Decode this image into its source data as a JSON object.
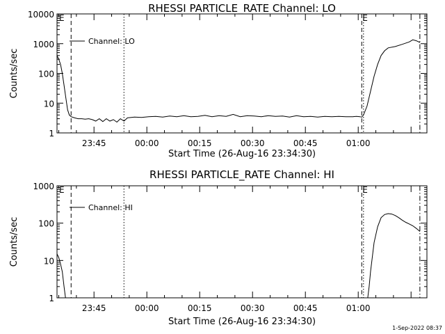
{
  "footer": {
    "timestamp": "1-Sep-2022 08:37"
  },
  "chart_data": [
    {
      "type": "line",
      "title": "RHESSI PARTICLE_RATE Channel: LO",
      "xlabel": "Start Time (26-Aug-16 23:34:30)",
      "ylabel": "Counts/sec",
      "yscale": "log",
      "ylim": [
        1,
        10000
      ],
      "ytick_labels": [
        "1",
        "10",
        "100",
        "1000",
        "10000"
      ],
      "xlim_minutes": [
        0,
        105
      ],
      "xtick_labels": [
        "23:45",
        "00:00",
        "00:15",
        "00:30",
        "00:45",
        "01:00"
      ],
      "legend": "Channel: LO",
      "marker_labels": [
        "E",
        "E"
      ],
      "vlines": [
        {
          "x": 4,
          "style": "dashed"
        },
        {
          "x": 19,
          "style": "dotted"
        },
        {
          "x": 86.5,
          "style": "dashed"
        },
        {
          "x": 87,
          "style": "dotted"
        },
        {
          "x": 103,
          "style": "dashdot"
        }
      ],
      "series": [
        {
          "x": [
            0,
            0.5,
            1,
            1.5,
            2,
            2.5,
            3,
            3.5,
            4,
            5,
            6,
            7,
            8,
            9,
            10,
            11,
            12,
            13,
            14,
            15,
            16,
            17,
            18,
            19,
            20,
            22,
            24,
            26,
            28,
            30,
            32,
            34,
            36,
            38,
            40,
            42,
            44,
            46,
            48,
            50,
            52,
            54,
            56,
            58,
            60,
            62,
            64,
            66,
            68,
            70,
            72,
            74,
            76,
            78,
            80,
            82,
            84,
            85,
            86,
            86.5,
            87,
            88,
            89,
            90,
            91,
            92,
            93,
            94,
            96,
            98,
            100,
            101,
            102,
            103
          ],
          "values": [
            400,
            300,
            200,
            100,
            40,
            15,
            6,
            4,
            3.5,
            3.2,
            3,
            3,
            2.9,
            3,
            2.8,
            2.5,
            3,
            2.4,
            3,
            2.5,
            2.8,
            2.3,
            3,
            2.5,
            3.2,
            3.4,
            3.3,
            3.5,
            3.6,
            3.4,
            3.7,
            3.5,
            3.8,
            3.5,
            3.6,
            3.9,
            3.5,
            3.8,
            3.6,
            4.2,
            3.5,
            3.8,
            3.7,
            3.5,
            3.8,
            3.6,
            3.7,
            3.4,
            3.8,
            3.5,
            3.6,
            3.4,
            3.6,
            3.5,
            3.6,
            3.5,
            3.5,
            3.6,
            3.5,
            3.4,
            4,
            8,
            25,
            80,
            200,
            400,
            580,
            720,
            800,
            950,
            1150,
            1350,
            1250,
            1100
          ]
        }
      ]
    },
    {
      "type": "line",
      "title": "RHESSI PARTICLE_RATE Channel: HI",
      "xlabel": "Start Time (26-Aug-16 23:34:30)",
      "ylabel": "Counts/sec",
      "yscale": "log",
      "ylim": [
        1,
        1000
      ],
      "ytick_labels": [
        "1",
        "10",
        "100",
        "1000"
      ],
      "xlim_minutes": [
        0,
        105
      ],
      "xtick_labels": [
        "23:45",
        "00:00",
        "00:15",
        "00:30",
        "00:45",
        "01:00"
      ],
      "legend": "Channel: HI",
      "marker_labels": [
        "E",
        "E"
      ],
      "vlines": [
        {
          "x": 4,
          "style": "dashed"
        },
        {
          "x": 19,
          "style": "dotted"
        },
        {
          "x": 86.5,
          "style": "dashed"
        },
        {
          "x": 87,
          "style": "dotted"
        },
        {
          "x": 103,
          "style": "dashdot"
        }
      ],
      "series": [
        {
          "x": [
            0,
            0.5,
            1,
            1.5,
            2,
            2.4,
            88.2,
            88.6,
            89,
            90,
            91,
            92,
            93,
            94,
            95,
            96,
            97,
            98,
            99,
            100,
            101,
            102,
            103
          ],
          "values": [
            15,
            12,
            8,
            5,
            2,
            1,
            1,
            2,
            5,
            30,
            80,
            140,
            170,
            180,
            175,
            160,
            140,
            120,
            105,
            95,
            85,
            72,
            60
          ]
        }
      ]
    }
  ]
}
